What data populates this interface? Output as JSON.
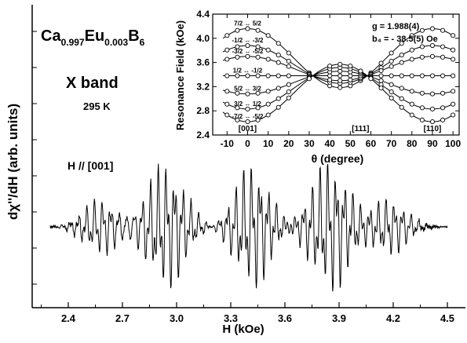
{
  "colors": {
    "ink": "#000000",
    "background": "#ffffff"
  },
  "chart_data": [
    {
      "type": "line",
      "role": "main-spectrum",
      "ylabel": "dχ''/dH  (arb. units)",
      "xlabel": "H (kOe)",
      "xlim": [
        2.2,
        4.6
      ],
      "xticks": [
        "2.4",
        "2.7",
        "3.0",
        "3.3",
        "3.6",
        "3.9",
        "4.2",
        "4.5"
      ],
      "grid": false,
      "annotations": {
        "compound_base": [
          "Ca",
          "Eu",
          "B"
        ],
        "compound_subs": [
          "0.997",
          "0.003",
          "6"
        ],
        "band": "X band",
        "temperature": "295 K",
        "orientation": "H // [001]"
      },
      "trace": {
        "x_start": 2.3,
        "x_end": 4.5,
        "baseline": 0,
        "groups": [
          {
            "center": 2.58,
            "width": 0.2,
            "amp": 0.45
          },
          {
            "center": 2.94,
            "width": 0.22,
            "amp": 1.0
          },
          {
            "center": 3.42,
            "width": 0.2,
            "amp": 1.0
          },
          {
            "center": 3.85,
            "width": 0.22,
            "amp": 1.05
          },
          {
            "center": 4.18,
            "width": 0.2,
            "amp": 0.45
          }
        ]
      }
    },
    {
      "type": "scatter",
      "role": "inset-angular-dependence",
      "xlabel": "θ (degree)",
      "ylabel": "Resonance Field (kOe)",
      "xlim": [
        -17,
        103
      ],
      "ylim": [
        2.4,
        4.4
      ],
      "xticks": [
        "-10",
        "0",
        "10",
        "20",
        "30",
        "40",
        "50",
        "60",
        "70",
        "80",
        "90",
        "100"
      ],
      "yticks": [
        "2.4",
        "2.8",
        "3.2",
        "3.6",
        "4.0",
        "4.4"
      ],
      "g_label": "g = 1.988(4)",
      "b4_label": "b₄ = - 38.5(5) Oe",
      "direction_labels": [
        {
          "text": "[001]",
          "theta": 0
        },
        {
          "text": "[111]",
          "theta": 55
        },
        {
          "text": "[110]",
          "theta": 90
        }
      ],
      "transition_labels": [
        "7/2 ↔ 5/2",
        "-1/2 ↔ -3/2",
        "-3/2 ↔ -5/2",
        "1/2 ↔ -1/2",
        "5/2 ↔ 3/2",
        "3/2 ↔ 1/2",
        "-7/2 ↔ -5/2"
      ],
      "center_field": 3.38,
      "theta_points": [
        -10,
        -5,
        0,
        5,
        10,
        15,
        20,
        30,
        40,
        45,
        50,
        55,
        60,
        65,
        70,
        75,
        80,
        85,
        90,
        95,
        100
      ],
      "series": [
        {
          "name": "7/2 ↔ 5/2",
          "amp": 0.78
        },
        {
          "name": "-1/2 ↔ -3/2",
          "amp": 0.5
        },
        {
          "name": "-3/2 ↔ -5/2",
          "amp": 0.32
        },
        {
          "name": "1/2 ↔ -1/2",
          "amp": 0.0
        },
        {
          "name": "5/2 ↔ 3/2",
          "amp": -0.3
        },
        {
          "name": "3/2 ↔ 1/2",
          "amp": -0.55
        },
        {
          "name": "-7/2 ↔ -5/2",
          "amp": -0.76
        }
      ]
    }
  ]
}
